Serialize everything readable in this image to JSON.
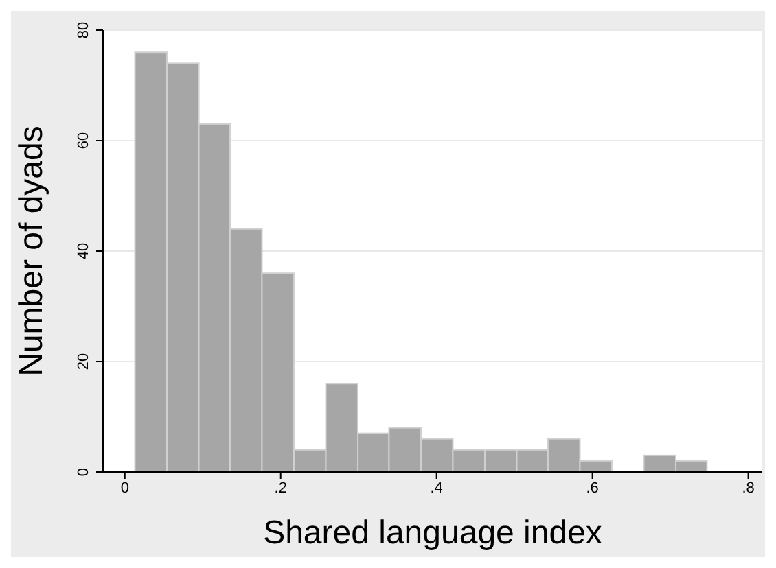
{
  "chart_data": {
    "type": "histogram",
    "xlabel": "Shared language index",
    "ylabel": "Number of dyads",
    "bins": [
      0.013,
      0.054,
      0.095,
      0.135,
      0.176,
      0.217,
      0.258,
      0.299,
      0.339,
      0.38,
      0.421,
      0.462,
      0.503,
      0.543,
      0.584,
      0.625,
      0.666,
      0.707,
      0.747
    ],
    "values": [
      76,
      74,
      63,
      44,
      36,
      4,
      16,
      7,
      8,
      6,
      4,
      4,
      4,
      6,
      2,
      0,
      3,
      2
    ],
    "color": "#a6a6a6",
    "xlim": [
      -0.028,
      0.818
    ],
    "xticks": [
      0,
      {
        "value": 0.2,
        "label": ".2"
      },
      {
        "value": 0.4,
        "label": ".4"
      },
      {
        "value": 0.6,
        "label": ".6"
      },
      {
        "value": 0.8,
        "label": ".8"
      }
    ],
    "ylim": [
      0,
      80
    ],
    "yticks": [
      0,
      20,
      40,
      60,
      80
    ],
    "grid": "y"
  }
}
